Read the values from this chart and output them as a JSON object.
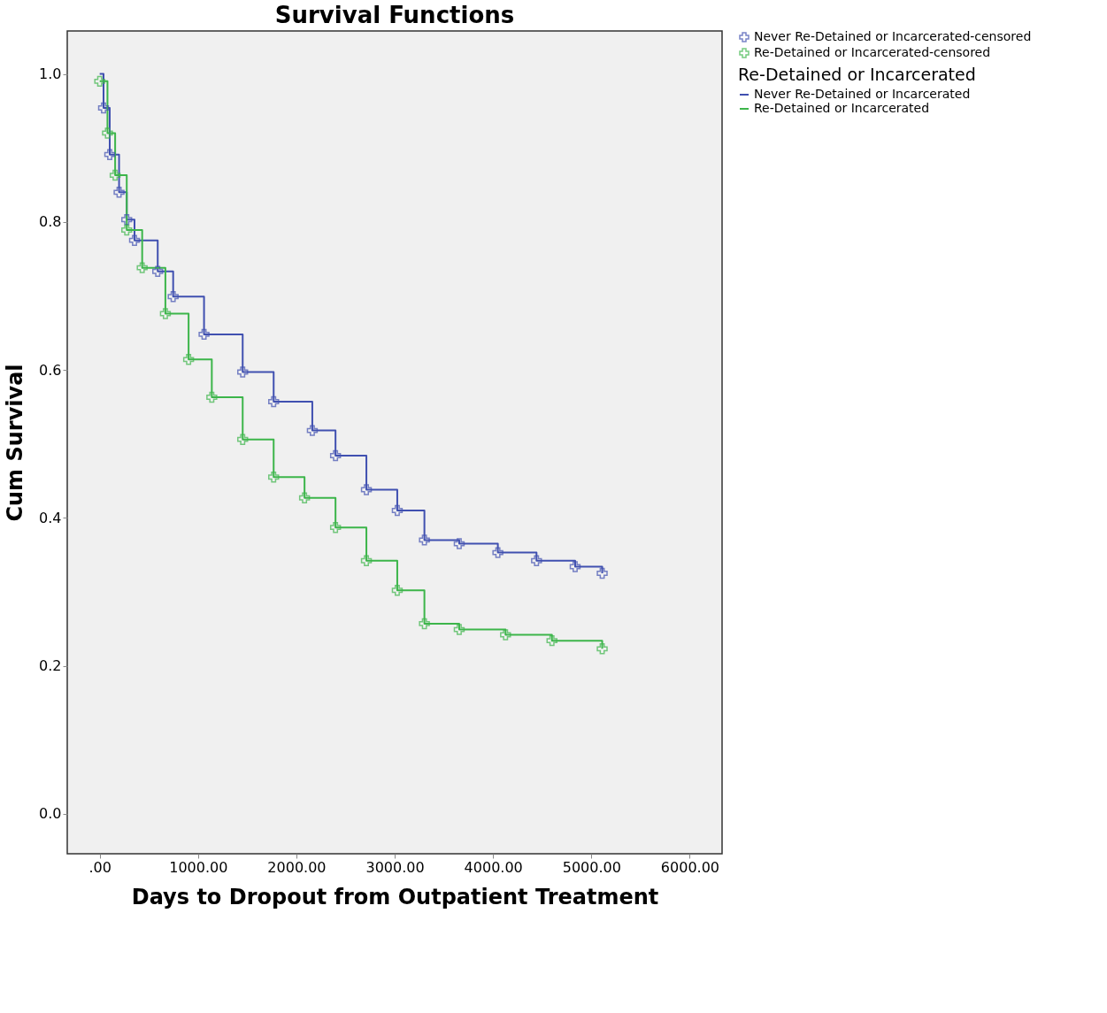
{
  "chart_data": {
    "type": "step",
    "title": "Survival Functions",
    "xlabel": "Days to Dropout from Outpatient Treatment",
    "ylabel": "Cum Survival",
    "legend_title": "Re-Detained or Incarcerated",
    "legend": "right",
    "grid": false,
    "xlim": [
      -330,
      6329
    ],
    "ylim": [
      -0.054,
      1.058
    ],
    "xticks": [
      {
        "value": 0,
        "label": ".00"
      },
      {
        "value": 1000,
        "label": "1000.00"
      },
      {
        "value": 2000,
        "label": "2000.00"
      },
      {
        "value": 3000,
        "label": "3000.00"
      },
      {
        "value": 4000,
        "label": "4000.00"
      },
      {
        "value": 5000,
        "label": "5000.00"
      },
      {
        "value": 6000,
        "label": "6000.00"
      }
    ],
    "yticks": [
      {
        "value": 0,
        "label": "0.0"
      },
      {
        "value": 0.2,
        "label": "0.2"
      },
      {
        "value": 0.4,
        "label": "0.4"
      },
      {
        "value": 0.6,
        "label": "0.6"
      },
      {
        "value": 0.8,
        "label": "0.8"
      },
      {
        "value": 1,
        "label": "1.0"
      }
    ],
    "series": [
      {
        "name": "Never Re-Detained or Incarcerated",
        "color": "#4050b0",
        "x": [
          0,
          39,
          102,
          197,
          275,
          354,
          590,
          747,
          1061,
          1454,
          1769,
          2162,
          2398,
          2712,
          3026,
          3302,
          3656,
          4049,
          4442,
          4835,
          5110
        ],
        "values": [
          1.0,
          0.954,
          0.891,
          0.84,
          0.803,
          0.775,
          0.733,
          0.699,
          0.648,
          0.597,
          0.557,
          0.518,
          0.484,
          0.438,
          0.41,
          0.37,
          0.365,
          0.353,
          0.342,
          0.334,
          0.325
        ]
      },
      {
        "name": "Re-Detained or Incarcerated",
        "color": "#3cb54a",
        "x": [
          0,
          79,
          157,
          275,
          432,
          668,
          904,
          1140,
          1454,
          1769,
          2083,
          2398,
          2712,
          3026,
          3302,
          3656,
          4127,
          4599,
          5110
        ],
        "values": [
          0.99,
          0.92,
          0.863,
          0.789,
          0.738,
          0.676,
          0.614,
          0.563,
          0.506,
          0.455,
          0.427,
          0.387,
          0.342,
          0.302,
          0.257,
          0.249,
          0.242,
          0.234,
          0.223
        ]
      },
      {
        "name": "Never Re-Detained or Incarcerated-censored",
        "type": "scatter",
        "marker": "cross",
        "color": "#4050b0",
        "x": [
          39,
          102,
          197,
          275,
          354,
          590,
          747,
          1061,
          1454,
          1769,
          2162,
          2398,
          2712,
          3026,
          3302,
          3656,
          4049,
          4442,
          4835,
          5110
        ],
        "values": [
          0.954,
          0.891,
          0.84,
          0.803,
          0.775,
          0.733,
          0.699,
          0.648,
          0.597,
          0.557,
          0.518,
          0.484,
          0.438,
          0.41,
          0.37,
          0.365,
          0.353,
          0.342,
          0.334,
          0.325
        ]
      },
      {
        "name": "Re-Detained or Incarcerated-censored",
        "type": "scatter",
        "marker": "cross",
        "color": "#3cb54a",
        "x": [
          0,
          79,
          157,
          275,
          432,
          668,
          904,
          1140,
          1454,
          1769,
          2083,
          2398,
          2712,
          3026,
          3302,
          3656,
          4127,
          4599,
          5110
        ],
        "values": [
          0.99,
          0.92,
          0.863,
          0.789,
          0.738,
          0.676,
          0.614,
          0.563,
          0.506,
          0.455,
          0.427,
          0.387,
          0.342,
          0.302,
          0.257,
          0.249,
          0.242,
          0.234,
          0.223
        ]
      }
    ]
  }
}
